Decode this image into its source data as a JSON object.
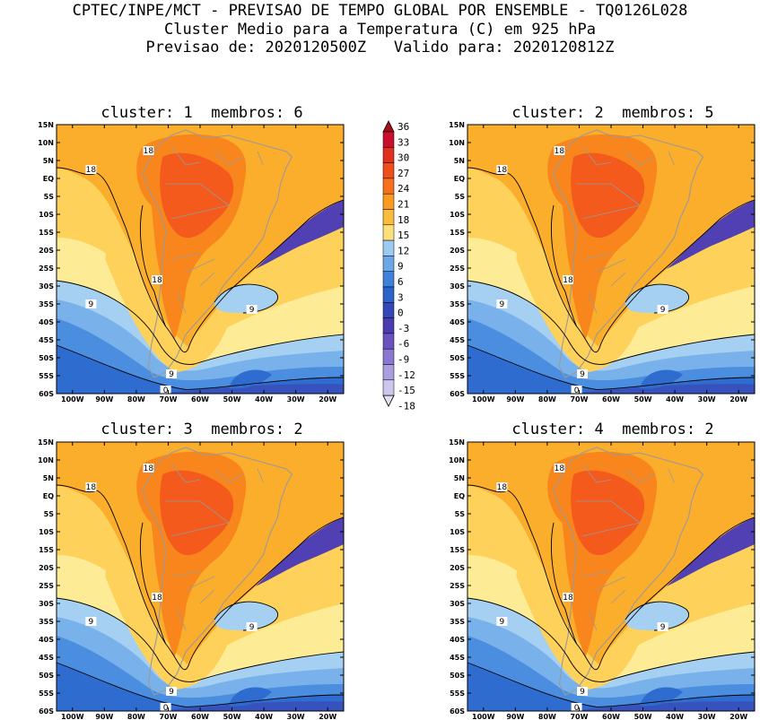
{
  "header": {
    "line1": "CPTEC/INPE/MCT - PREVISAO DE TEMPO GLOBAL POR ENSEMBLE - TQ0126L028",
    "line2": "Cluster Medio para a Temperatura (C) em 925 hPa",
    "line3": "Previsao de: 2020120500Z   Valido para: 2020120812Z"
  },
  "panels": [
    {
      "title": "cluster: 1  membros: 6"
    },
    {
      "title": "cluster: 2  membros: 5"
    },
    {
      "title": "cluster: 3  membros: 2"
    },
    {
      "title": "cluster: 4  membros: 2"
    }
  ],
  "axes": {
    "lat_labels": [
      "15N",
      "10N",
      "5N",
      "EQ",
      "5S",
      "10S",
      "15S",
      "20S",
      "25S",
      "30S",
      "35S",
      "40S",
      "45S",
      "50S",
      "55S",
      "60S"
    ],
    "lon_labels": [
      "100W",
      "90W",
      "80W",
      "70W",
      "60W",
      "50W",
      "40W",
      "30W",
      "20W"
    ]
  },
  "contour_labels": [
    "18",
    "18",
    "18",
    "9",
    "9",
    "9",
    "0"
  ],
  "colorbar": {
    "labels": [
      "36",
      "33",
      "30",
      "27",
      "24",
      "21",
      "18",
      "15",
      "12",
      "9",
      "6",
      "3",
      "0",
      "-3",
      "-6",
      "-9",
      "-12",
      "-15",
      "-18"
    ],
    "colors": [
      "#a50f15",
      "#c8102e",
      "#e0301e",
      "#f04e1a",
      "#f7701b",
      "#fa9a1f",
      "#fbbc3c",
      "#fde07a",
      "#9ccaf0",
      "#6aa8e8",
      "#3f82dc",
      "#2c63c8",
      "#3548b8",
      "#4a3bb0",
      "#6a52c0",
      "#8a78d0",
      "#ab9ede",
      "#cfc6ec",
      "#e6e0f4"
    ]
  },
  "map_colors": {
    "t24_27": "#f35a1c",
    "t21_24": "#f8861c",
    "t18_21": "#fbad2c",
    "t15_18": "#fdd15a",
    "t12_15": "#fdeb95",
    "t9_12": "#a6d0f2",
    "t6_9": "#79b2ea",
    "t3_6": "#4b8ee0",
    "t0_3": "#2f6ccf",
    "tm3_0": "#3852bd",
    "tm6_m3": "#5040b3",
    "land_lines": "#9a9a9a",
    "contour": "#000000"
  }
}
